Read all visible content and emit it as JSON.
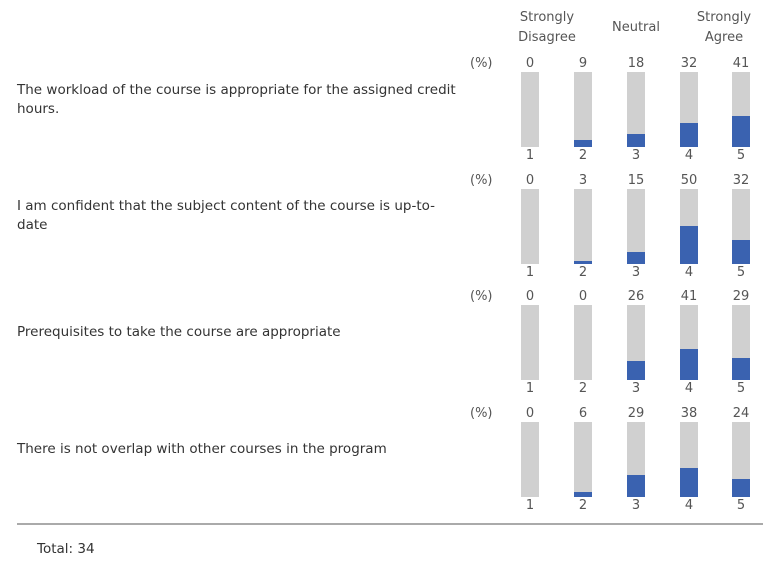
{
  "header": {
    "low": "Strongly Disagree",
    "mid": "Neutral",
    "high": "Strongly Agree"
  },
  "unit": "(%)",
  "scale": [
    1,
    2,
    3,
    4,
    5
  ],
  "bar_color": "#3a62b0",
  "track_color": "#d0d0d0",
  "questions": [
    {
      "text": "The workload of the course is appropriate for the assigned credit hours.",
      "values": [
        0,
        9,
        18,
        32,
        41
      ]
    },
    {
      "text": "I am confident that the subject content of the course is up-to-date",
      "values": [
        0,
        3,
        15,
        50,
        32
      ]
    },
    {
      "text": "Prerequisites to take the course are appropriate",
      "values": [
        0,
        0,
        26,
        41,
        29
      ]
    },
    {
      "text": "There is not overlap with other courses in the program",
      "values": [
        0,
        6,
        29,
        38,
        24
      ]
    }
  ],
  "total": {
    "label": "Total:",
    "value": 34
  }
}
